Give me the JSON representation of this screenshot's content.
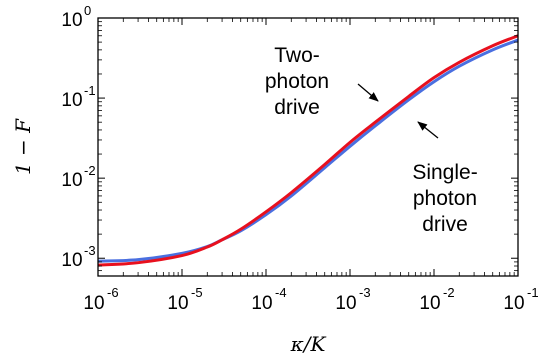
{
  "chart_data": {
    "type": "line",
    "title": "",
    "xlabel": "κ/K",
    "ylabel": "1 − F",
    "xscale": "log",
    "yscale": "log",
    "xlim": [
      1e-06,
      0.1
    ],
    "ylim": [
      0.0006,
      1
    ],
    "grid": false,
    "x_ticks": [
      {
        "value": 1e-06,
        "base": "10",
        "exp": "-6"
      },
      {
        "value": 1e-05,
        "base": "10",
        "exp": "-5"
      },
      {
        "value": 0.0001,
        "base": "10",
        "exp": "-4"
      },
      {
        "value": 0.001,
        "base": "10",
        "exp": "-3"
      },
      {
        "value": 0.01,
        "base": "10",
        "exp": "-2"
      },
      {
        "value": 0.1,
        "base": "10",
        "exp": "-1"
      }
    ],
    "y_ticks": [
      {
        "value": 0.001,
        "base": "10",
        "exp": "-3"
      },
      {
        "value": 0.01,
        "base": "10",
        "exp": "-2"
      },
      {
        "value": 0.1,
        "base": "10",
        "exp": "-1"
      },
      {
        "value": 1,
        "base": "10",
        "exp": "0"
      }
    ],
    "series": [
      {
        "color": "#4a6fe0",
        "x": [
          1e-06,
          3e-06,
          1e-05,
          2e-05,
          3e-05,
          5e-05,
          0.0001,
          0.0002,
          0.0005,
          0.001,
          0.002,
          0.005,
          0.01,
          0.02,
          0.05,
          0.1
        ],
        "y": [
          0.00092,
          0.00096,
          0.00115,
          0.0014,
          0.0017,
          0.0022,
          0.0035,
          0.006,
          0.0135,
          0.025,
          0.045,
          0.095,
          0.16,
          0.25,
          0.4,
          0.53
        ]
      },
      {
        "color": "#e8101e",
        "x": [
          1e-06,
          3e-06,
          1e-05,
          2e-05,
          3e-05,
          5e-05,
          0.0001,
          0.0002,
          0.0005,
          0.001,
          0.002,
          0.005,
          0.01,
          0.02,
          0.05,
          0.1
        ],
        "y": [
          0.00082,
          0.00088,
          0.00108,
          0.00138,
          0.0017,
          0.0023,
          0.0038,
          0.0066,
          0.0148,
          0.028,
          0.05,
          0.105,
          0.18,
          0.28,
          0.45,
          0.6
        ]
      }
    ],
    "annotations": [
      {
        "lines": [
          "Two-",
          "photon",
          "drive"
        ],
        "target": {
          "x": 0.004,
          "y": 0.11
        }
      },
      {
        "lines": [
          "Single-",
          "photon",
          "drive"
        ],
        "target": {
          "x": 0.007,
          "y": 0.1
        }
      }
    ]
  }
}
